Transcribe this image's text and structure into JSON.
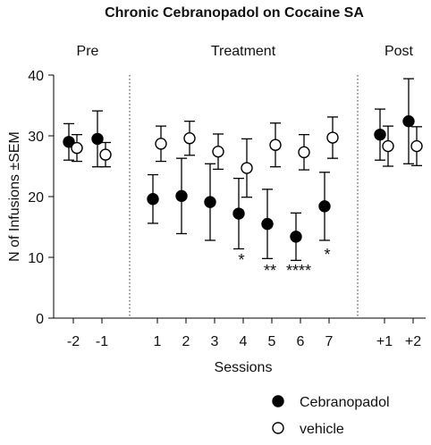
{
  "chart_data": {
    "type": "scatter",
    "title": "Chronic Cebranopadol on Cocaine SA",
    "xlabel": "Sessions",
    "ylabel": "N of Infusions ±SEM",
    "ylim": [
      0,
      40
    ],
    "yticks": [
      0,
      10,
      20,
      30,
      40
    ],
    "categories": [
      "-2",
      "-1",
      "1",
      "2",
      "3",
      "4",
      "5",
      "6",
      "7",
      "+1",
      "+2"
    ],
    "phases": [
      {
        "label": "Pre",
        "from": 0,
        "to": 1
      },
      {
        "label": "Treatment",
        "from": 2,
        "to": 8
      },
      {
        "label": "Post",
        "from": 9,
        "to": 10
      }
    ],
    "grid": false,
    "legend_position": "bottom-right",
    "series": [
      {
        "name": "Cebranopadol",
        "marker": "filled-circle",
        "color": "#000000",
        "values": [
          29.0,
          29.5,
          19.6,
          20.1,
          19.1,
          17.2,
          15.5,
          13.4,
          18.4,
          30.2,
          32.4
        ],
        "sem": [
          3.0,
          4.6,
          4.0,
          6.2,
          6.3,
          5.8,
          5.7,
          3.9,
          5.6,
          4.2,
          7.0
        ]
      },
      {
        "name": "vehicle",
        "marker": "open-circle",
        "color": "#000000",
        "values": [
          28.0,
          26.9,
          28.7,
          29.6,
          27.4,
          24.7,
          28.5,
          27.3,
          29.7,
          28.3,
          28.3
        ],
        "sem": [
          2.2,
          2.0,
          2.9,
          2.8,
          2.9,
          4.8,
          3.6,
          2.9,
          3.4,
          3.3,
          3.2
        ]
      }
    ],
    "significance": [
      {
        "index": 5,
        "label": "*"
      },
      {
        "index": 6,
        "label": "**"
      },
      {
        "index": 7,
        "label": "****"
      },
      {
        "index": 8,
        "label": "*"
      }
    ]
  }
}
